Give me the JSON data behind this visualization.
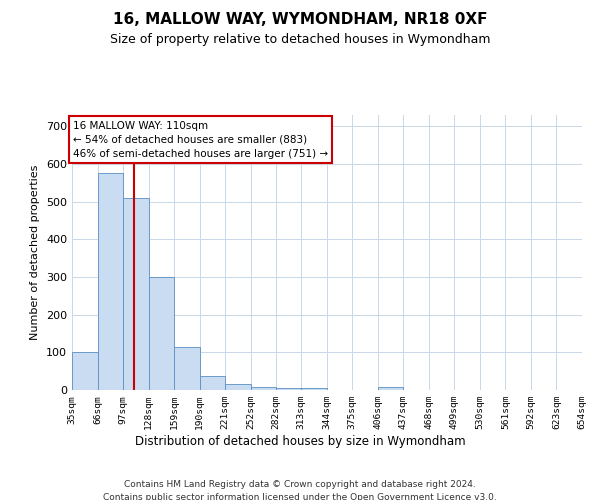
{
  "title": "16, MALLOW WAY, WYMONDHAM, NR18 0XF",
  "subtitle": "Size of property relative to detached houses in Wymondham",
  "xlabel": "Distribution of detached houses by size in Wymondham",
  "ylabel": "Number of detached properties",
  "footer_line1": "Contains HM Land Registry data © Crown copyright and database right 2024.",
  "footer_line2": "Contains public sector information licensed under the Open Government Licence v3.0.",
  "annotation_title": "16 MALLOW WAY: 110sqm",
  "annotation_line1": "← 54% of detached houses are smaller (883)",
  "annotation_line2": "46% of semi-detached houses are larger (751) →",
  "bar_edges": [
    35,
    66,
    97,
    128,
    159,
    190,
    221,
    252,
    282,
    313,
    344,
    375,
    406,
    437,
    468,
    499,
    530,
    561,
    592,
    623,
    654
  ],
  "bar_heights": [
    100,
    575,
    510,
    300,
    115,
    37,
    15,
    8,
    5,
    5,
    0,
    0,
    7,
    0,
    0,
    0,
    0,
    0,
    0,
    0
  ],
  "bar_color": "#c9dcf2",
  "bar_edge_color": "#5a8fc3",
  "vline_color": "#cc0000",
  "vline_x": 110,
  "annotation_box_color": "#cc0000",
  "background_color": "#ffffff",
  "grid_color": "#c8d8e8",
  "ylim": [
    0,
    730
  ],
  "yticks": [
    0,
    100,
    200,
    300,
    400,
    500,
    600,
    700
  ],
  "title_fontsize": 11,
  "subtitle_fontsize": 9
}
